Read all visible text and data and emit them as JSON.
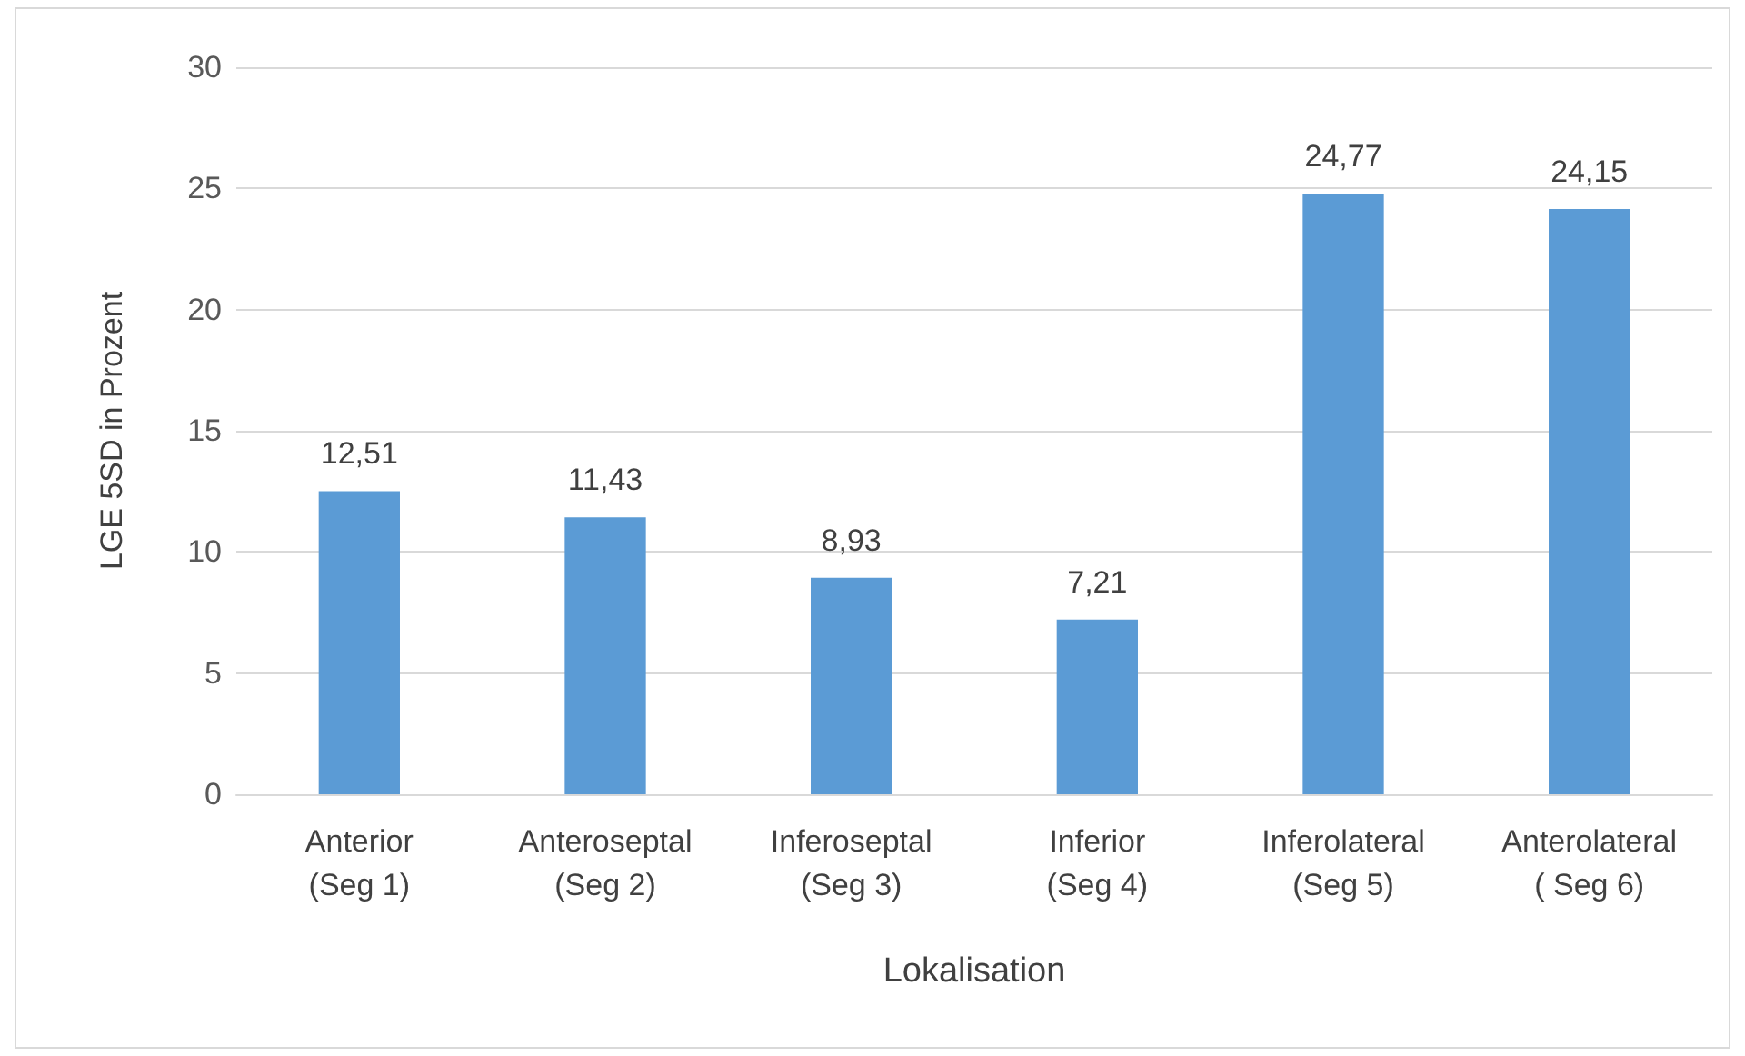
{
  "chart_data": {
    "type": "bar",
    "xlabel": "Lokalisation",
    "ylabel": "LGE 5SD in Prozent",
    "categories": [
      "Anterior\n(Seg 1)",
      "Anteroseptal\n(Seg 2)",
      "Inferoseptal\n(Seg 3)",
      "Inferior\n(Seg 4)",
      "Inferolateral\n(Seg 5)",
      "Anterolateral\n( Seg 6)"
    ],
    "values": [
      12.51,
      11.43,
      8.93,
      7.21,
      24.77,
      24.15
    ],
    "value_labels": [
      "12,51",
      "11,43",
      "8,93",
      "7,21",
      "24,77",
      "24,15"
    ],
    "color": "#5b9bd5",
    "ylim": [
      0,
      30
    ],
    "yticks": [
      0,
      5,
      10,
      15,
      20,
      25,
      30
    ],
    "grid": "y"
  }
}
